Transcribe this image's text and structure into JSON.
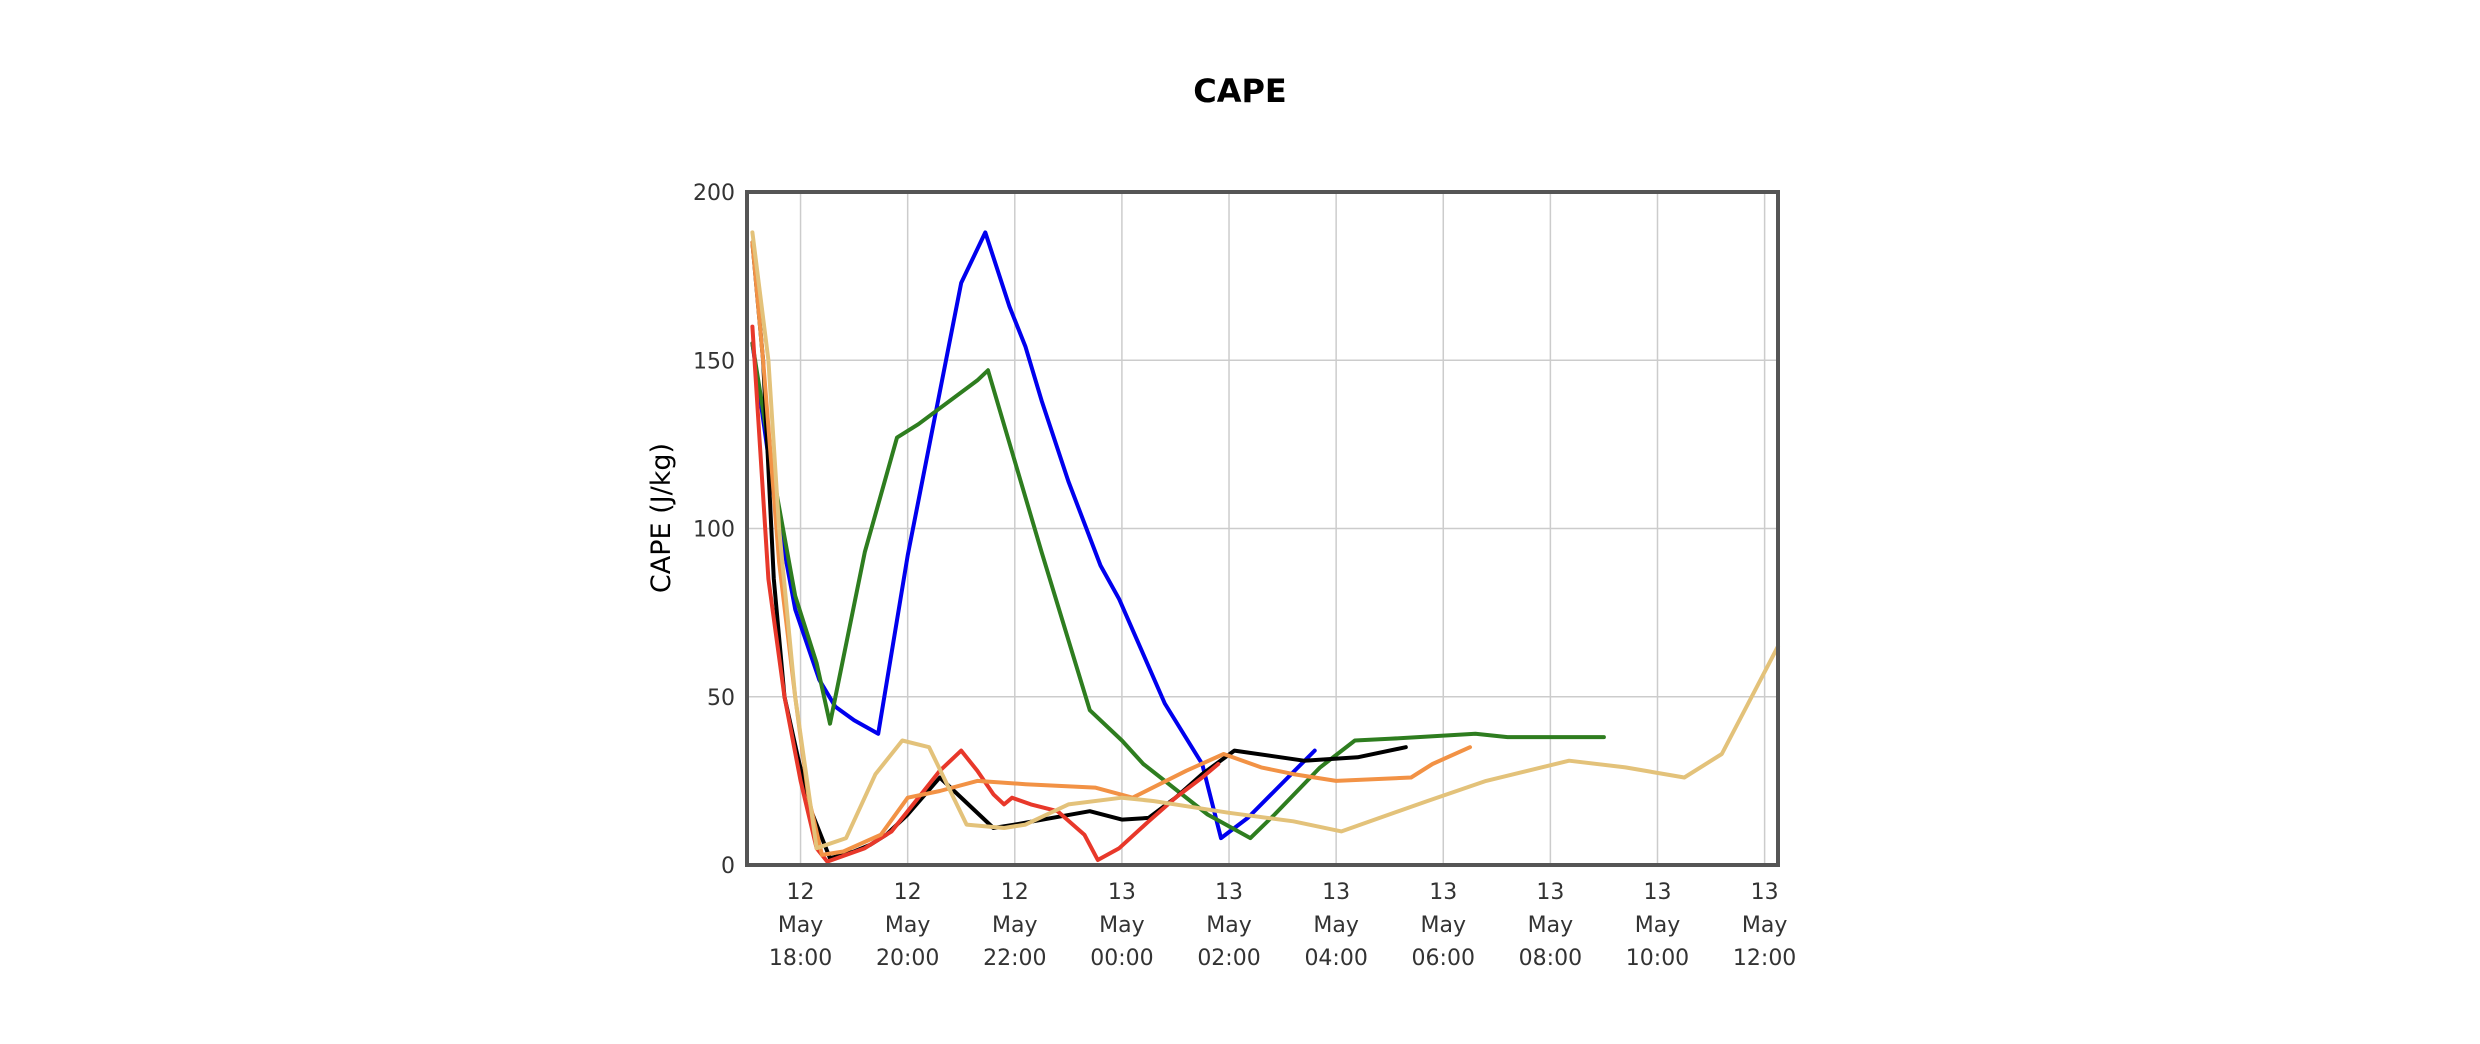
{
  "chart_data": {
    "type": "line",
    "title": "CAPE",
    "ylabel": "CAPE (J/kg)",
    "xlabel": "",
    "ylim": [
      0,
      200
    ],
    "yticks": [
      0,
      50,
      100,
      150,
      200
    ],
    "x_unit": "hours since 12 May 18:00",
    "xlim": [
      -1.0,
      18.25
    ],
    "xticks": [
      {
        "x": 0,
        "lines": [
          "12",
          "May",
          "18:00"
        ]
      },
      {
        "x": 2,
        "lines": [
          "12",
          "May",
          "20:00"
        ]
      },
      {
        "x": 4,
        "lines": [
          "12",
          "May",
          "22:00"
        ]
      },
      {
        "x": 6,
        "lines": [
          "13",
          "May",
          "00:00"
        ]
      },
      {
        "x": 8,
        "lines": [
          "13",
          "May",
          "02:00"
        ]
      },
      {
        "x": 10,
        "lines": [
          "13",
          "May",
          "04:00"
        ]
      },
      {
        "x": 12,
        "lines": [
          "13",
          "May",
          "06:00"
        ]
      },
      {
        "x": 14,
        "lines": [
          "13",
          "May",
          "08:00"
        ]
      },
      {
        "x": 16,
        "lines": [
          "13",
          "May",
          "10:00"
        ]
      },
      {
        "x": 18,
        "lines": [
          "13",
          "May",
          "12:00"
        ]
      }
    ],
    "grid": true,
    "legend": "none",
    "series": [
      {
        "color": "#0000ee",
        "points": [
          [
            -0.9,
            155
          ],
          [
            -0.5,
            110
          ],
          [
            -0.1,
            76
          ],
          [
            0.35,
            55
          ],
          [
            0.65,
            47
          ],
          [
            1.0,
            43
          ],
          [
            1.45,
            39
          ],
          [
            2.0,
            92
          ],
          [
            3.0,
            173
          ],
          [
            3.45,
            188
          ],
          [
            3.9,
            166
          ],
          [
            4.2,
            154
          ],
          [
            4.5,
            138
          ],
          [
            5.0,
            114
          ],
          [
            5.6,
            89
          ],
          [
            5.95,
            79
          ],
          [
            6.8,
            48
          ],
          [
            7.5,
            30
          ],
          [
            7.85,
            8
          ],
          [
            8.35,
            14
          ],
          [
            9.1,
            26
          ],
          [
            9.6,
            34
          ]
        ]
      },
      {
        "color": "#2e7d1f",
        "points": [
          [
            -0.9,
            155
          ],
          [
            -0.5,
            115
          ],
          [
            -0.1,
            80
          ],
          [
            0.3,
            60
          ],
          [
            0.55,
            42
          ],
          [
            1.2,
            93
          ],
          [
            1.8,
            127
          ],
          [
            2.2,
            131
          ],
          [
            3.3,
            144
          ],
          [
            3.5,
            147
          ],
          [
            4.5,
            93
          ],
          [
            5.4,
            46
          ],
          [
            6.0,
            37
          ],
          [
            6.4,
            30
          ],
          [
            7.6,
            15
          ],
          [
            8.4,
            8
          ],
          [
            8.85,
            15
          ],
          [
            9.7,
            29
          ],
          [
            10.35,
            37
          ],
          [
            11.0,
            37.5
          ],
          [
            12.6,
            39
          ],
          [
            13.2,
            38
          ],
          [
            14.3,
            38
          ],
          [
            15.0,
            38
          ]
        ]
      },
      {
        "color": "#000000",
        "points": [
          [
            -0.9,
            185
          ],
          [
            -0.7,
            150
          ],
          [
            -0.5,
            85
          ],
          [
            -0.3,
            50
          ],
          [
            -0.05,
            32
          ],
          [
            0.2,
            16
          ],
          [
            0.55,
            2
          ],
          [
            1.0,
            4
          ],
          [
            1.3,
            6
          ],
          [
            1.6,
            9
          ],
          [
            2.0,
            15
          ],
          [
            2.6,
            26
          ],
          [
            3.6,
            11
          ],
          [
            4.0,
            12
          ],
          [
            5.4,
            16
          ],
          [
            6.0,
            13.5
          ],
          [
            6.5,
            14
          ],
          [
            7.0,
            20
          ],
          [
            7.5,
            27
          ],
          [
            8.1,
            34
          ],
          [
            9.4,
            31
          ],
          [
            10.4,
            32
          ],
          [
            11.3,
            35
          ]
        ]
      },
      {
        "color": "#e8382a",
        "points": [
          [
            -0.9,
            160
          ],
          [
            -0.6,
            85
          ],
          [
            -0.3,
            50
          ],
          [
            0.0,
            25
          ],
          [
            0.3,
            5
          ],
          [
            0.5,
            1
          ],
          [
            1.2,
            5
          ],
          [
            1.7,
            10
          ],
          [
            2.2,
            20
          ],
          [
            2.6,
            28
          ],
          [
            3.0,
            34
          ],
          [
            3.3,
            28
          ],
          [
            3.6,
            21
          ],
          [
            3.8,
            18
          ],
          [
            3.95,
            20
          ],
          [
            4.3,
            18
          ],
          [
            4.8,
            16
          ],
          [
            5.3,
            9
          ],
          [
            5.55,
            1.5
          ],
          [
            5.95,
            5
          ],
          [
            6.5,
            13
          ],
          [
            7.0,
            20
          ],
          [
            7.5,
            26
          ],
          [
            7.8,
            30
          ]
        ]
      },
      {
        "color": "#f29245",
        "points": [
          [
            -0.9,
            185
          ],
          [
            -0.7,
            150
          ],
          [
            -0.4,
            90
          ],
          [
            -0.1,
            50
          ],
          [
            0.15,
            20
          ],
          [
            0.4,
            3
          ],
          [
            0.8,
            4
          ],
          [
            1.5,
            9
          ],
          [
            2.0,
            20
          ],
          [
            2.6,
            22
          ],
          [
            3.3,
            25
          ],
          [
            4.2,
            24
          ],
          [
            5.5,
            23
          ],
          [
            6.2,
            20
          ],
          [
            7.2,
            28
          ],
          [
            7.9,
            33
          ],
          [
            8.6,
            29
          ],
          [
            9.2,
            27
          ],
          [
            10.0,
            25
          ],
          [
            11.4,
            26
          ],
          [
            11.8,
            30
          ],
          [
            12.5,
            35
          ]
        ]
      },
      {
        "color": "#e3c27a",
        "points": [
          [
            -0.9,
            188
          ],
          [
            -0.6,
            150
          ],
          [
            -0.4,
            100
          ],
          [
            -0.1,
            50
          ],
          [
            0.3,
            5
          ],
          [
            0.85,
            8
          ],
          [
            1.4,
            27
          ],
          [
            1.9,
            37
          ],
          [
            2.4,
            35
          ],
          [
            3.1,
            12
          ],
          [
            3.8,
            11
          ],
          [
            4.2,
            12
          ],
          [
            5.0,
            18
          ],
          [
            6.0,
            20
          ],
          [
            6.6,
            19
          ],
          [
            7.4,
            17
          ],
          [
            8.0,
            15.5
          ],
          [
            9.2,
            13
          ],
          [
            10.1,
            10
          ],
          [
            11.7,
            19
          ],
          [
            12.8,
            25
          ],
          [
            14.35,
            31
          ],
          [
            15.4,
            29
          ],
          [
            16.5,
            26
          ],
          [
            17.2,
            33
          ],
          [
            18.25,
            65
          ]
        ]
      }
    ]
  }
}
